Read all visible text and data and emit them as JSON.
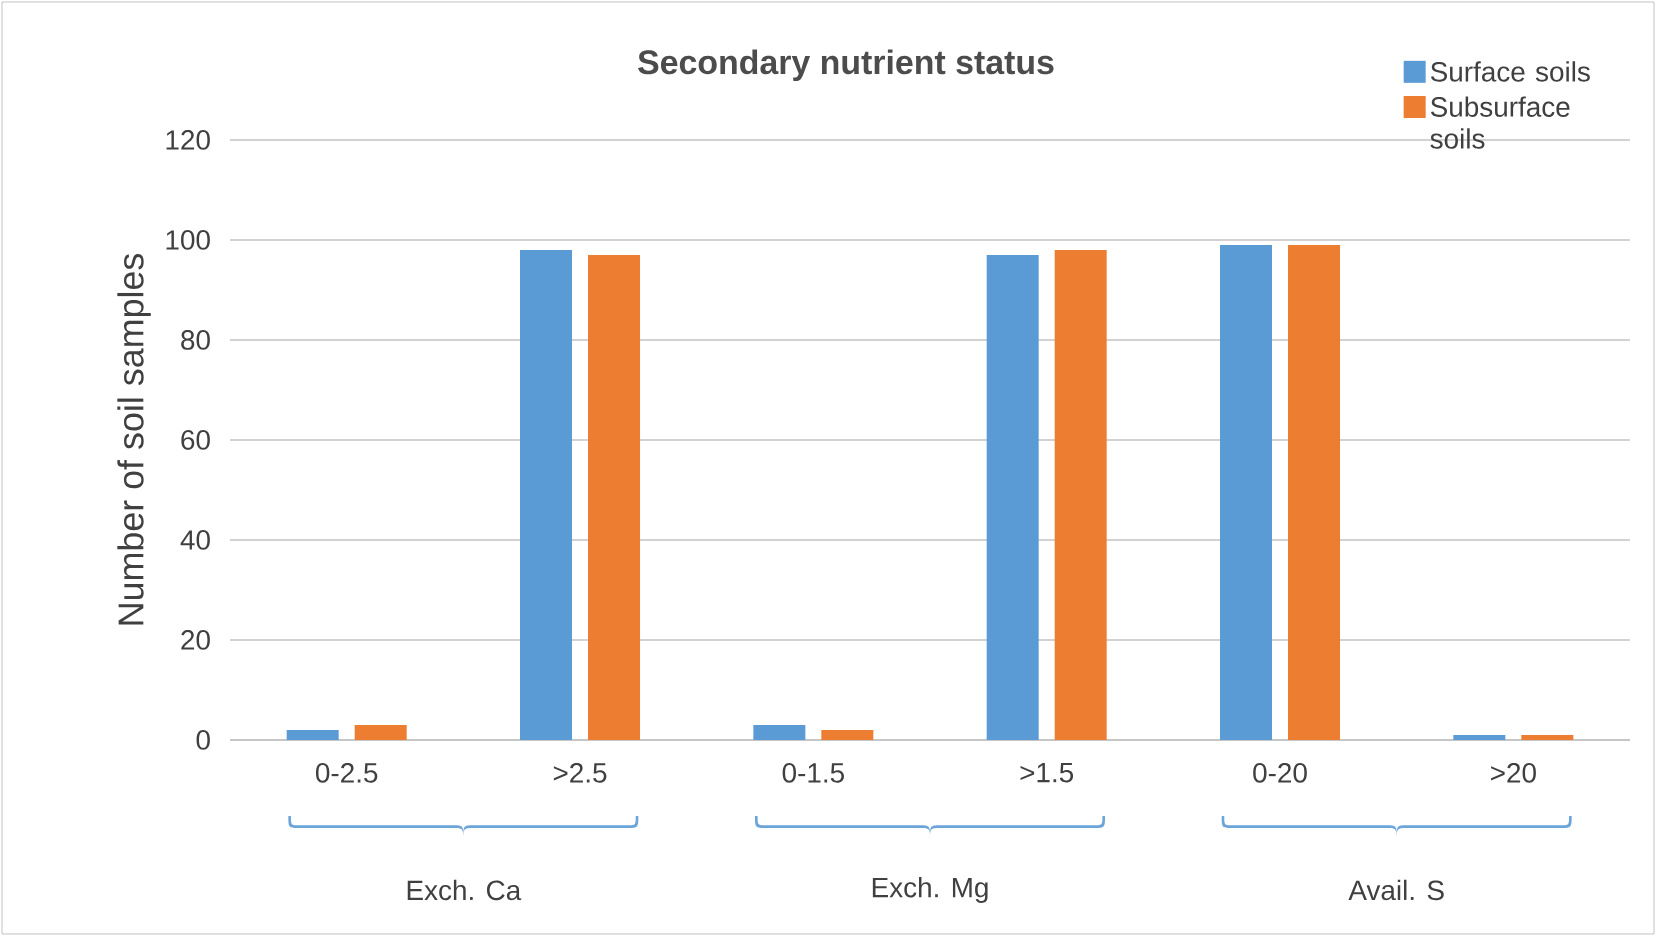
{
  "chart_data": {
    "type": "bar",
    "title": "Secondary nutrient status",
    "ylabel": "Number of soil samples",
    "categories": [
      "0-2.5",
      ">2.5",
      "0-1.5",
      ">1.5",
      "0-20",
      ">20"
    ],
    "series": [
      {
        "name": "Surface soils",
        "color": "#5b9bd5",
        "values": [
          2,
          98,
          3,
          97,
          99,
          1
        ]
      },
      {
        "name": "Subsurface soils",
        "color": "#ed7d31",
        "values": [
          3,
          97,
          2,
          98,
          99,
          1
        ]
      }
    ],
    "annotations": [
      "Exch. Ca",
      "Exch. Mg",
      "Avail. S"
    ],
    "ylim": [
      0,
      120
    ],
    "yticks": [
      0,
      20,
      40,
      60,
      80,
      100,
      120
    ],
    "grid": "y",
    "legend": "top right"
  }
}
